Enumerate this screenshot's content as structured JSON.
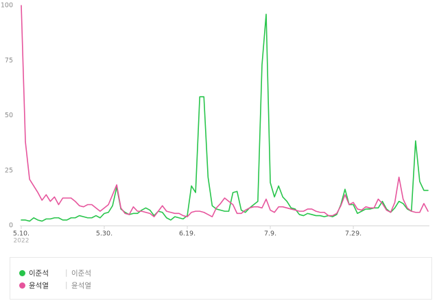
{
  "chart_data": {
    "type": "line",
    "ylim": [
      0,
      100
    ],
    "yticks": [
      0,
      25,
      50,
      75,
      100
    ],
    "grid": false,
    "xticks": [
      {
        "date": "2022-05-10",
        "label": "5.10.",
        "sublabel": "2022"
      },
      {
        "date": "2022-05-30",
        "label": "5.30."
      },
      {
        "date": "2022-06-19",
        "label": "6.19."
      },
      {
        "date": "2022-07-09",
        "label": "7.9."
      },
      {
        "date": "2022-07-29",
        "label": "7.29."
      }
    ],
    "legend": {
      "position": "bottom",
      "separator": "|"
    },
    "x": [
      "2022-05-10",
      "2022-05-11",
      "2022-05-12",
      "2022-05-13",
      "2022-05-14",
      "2022-05-15",
      "2022-05-16",
      "2022-05-17",
      "2022-05-18",
      "2022-05-19",
      "2022-05-20",
      "2022-05-21",
      "2022-05-22",
      "2022-05-23",
      "2022-05-24",
      "2022-05-25",
      "2022-05-26",
      "2022-05-27",
      "2022-05-28",
      "2022-05-29",
      "2022-05-30",
      "2022-05-31",
      "2022-06-01",
      "2022-06-02",
      "2022-06-03",
      "2022-06-04",
      "2022-06-05",
      "2022-06-06",
      "2022-06-07",
      "2022-06-08",
      "2022-06-09",
      "2022-06-10",
      "2022-06-11",
      "2022-06-12",
      "2022-06-13",
      "2022-06-14",
      "2022-06-15",
      "2022-06-16",
      "2022-06-17",
      "2022-06-18",
      "2022-06-19",
      "2022-06-20",
      "2022-06-21",
      "2022-06-22",
      "2022-06-23",
      "2022-06-24",
      "2022-06-25",
      "2022-06-26",
      "2022-06-27",
      "2022-06-28",
      "2022-06-29",
      "2022-06-30",
      "2022-07-01",
      "2022-07-02",
      "2022-07-03",
      "2022-07-04",
      "2022-07-05",
      "2022-07-06",
      "2022-07-07",
      "2022-07-08",
      "2022-07-09",
      "2022-07-10",
      "2022-07-11",
      "2022-07-12",
      "2022-07-13",
      "2022-07-14",
      "2022-07-15",
      "2022-07-16",
      "2022-07-17",
      "2022-07-18",
      "2022-07-19",
      "2022-07-20",
      "2022-07-21",
      "2022-07-22",
      "2022-07-23",
      "2022-07-24",
      "2022-07-25",
      "2022-07-26",
      "2022-07-27",
      "2022-07-28",
      "2022-07-29",
      "2022-07-30",
      "2022-07-31",
      "2022-08-01",
      "2022-08-02",
      "2022-08-03",
      "2022-08-04",
      "2022-08-05",
      "2022-08-06",
      "2022-08-07",
      "2022-08-08",
      "2022-08-09",
      "2022-08-10",
      "2022-08-11",
      "2022-08-12",
      "2022-08-13",
      "2022-08-14",
      "2022-08-15",
      "2022-08-16"
    ],
    "series": [
      {
        "name": "이준석",
        "keywords": "이준석",
        "color": "#27c44a",
        "values": [
          2.5,
          2.5,
          2,
          3.5,
          2.5,
          2,
          3,
          3,
          3.5,
          3.5,
          2.5,
          2.5,
          3.5,
          3.5,
          4.5,
          4,
          3.5,
          3.5,
          4.5,
          3.5,
          5.5,
          6,
          9,
          17.5,
          7.5,
          6,
          5,
          5.5,
          5.5,
          7,
          8,
          7,
          4.5,
          6.5,
          6,
          3.5,
          2.5,
          4,
          3.5,
          3,
          4.5,
          18,
          15,
          58.5,
          58.5,
          22,
          9,
          7.5,
          7,
          6.5,
          6.5,
          15,
          15.5,
          7,
          6,
          8,
          9.5,
          11,
          73,
          96,
          19.5,
          13,
          18,
          13,
          11,
          8,
          7.5,
          5,
          4.5,
          5.5,
          5,
          4.5,
          4.5,
          4,
          4.5,
          4,
          5,
          9.5,
          16.5,
          9.5,
          9.5,
          5.5,
          6.5,
          7.5,
          7.5,
          8,
          8,
          11,
          7.5,
          6,
          8,
          11,
          10,
          7.5,
          6.5,
          38.5,
          20,
          16,
          16
        ]
      },
      {
        "name": "윤석열",
        "keywords": "윤석열",
        "color": "#e6549c",
        "values": [
          100,
          38,
          21,
          18,
          15,
          11.5,
          14,
          11,
          13,
          9.5,
          12.5,
          12.5,
          12.5,
          11,
          9,
          8.5,
          9.5,
          9.5,
          8,
          6.5,
          8,
          9.5,
          14,
          18.5,
          8,
          5.5,
          5,
          8.5,
          6.5,
          6.5,
          6,
          5.5,
          4,
          6.5,
          9,
          6.5,
          6,
          5.5,
          5.5,
          4.5,
          4,
          6,
          6.5,
          6.5,
          6,
          5,
          4,
          8,
          10,
          12.5,
          11,
          9.5,
          5.5,
          5.5,
          7,
          8,
          8.5,
          8.5,
          8,
          12,
          7,
          6,
          8.5,
          8.5,
          8,
          7.5,
          7,
          6.5,
          6.5,
          7.5,
          7.5,
          6.5,
          6,
          6,
          4.5,
          4.5,
          5.5,
          9,
          14,
          9.5,
          10.5,
          7.5,
          7,
          8.5,
          8,
          8,
          12,
          10,
          7,
          6,
          10.5,
          22,
          12,
          8,
          6.5,
          6,
          6,
          10,
          6.5
        ]
      }
    ]
  }
}
